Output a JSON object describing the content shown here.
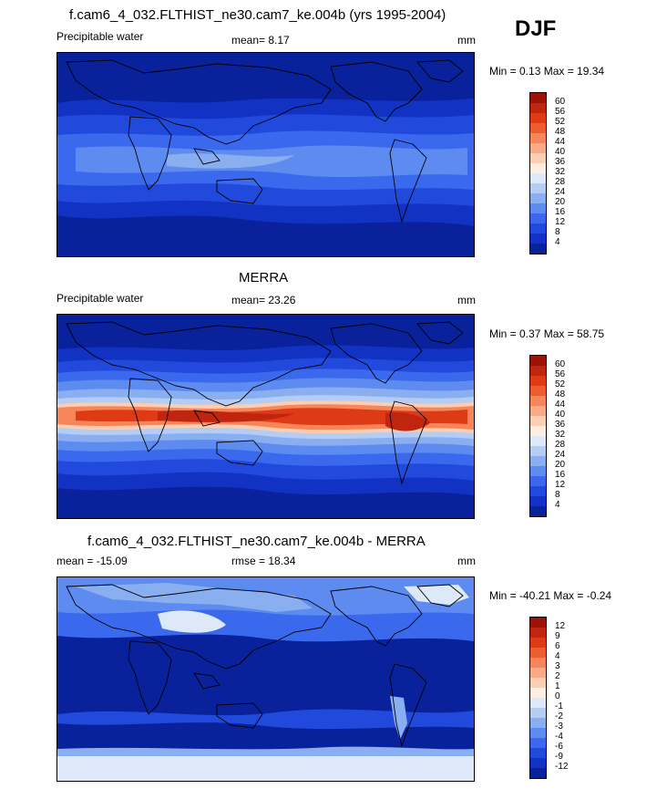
{
  "season": "DJF",
  "panels": [
    {
      "title": "f.cam6_4_032.FLTHIST_ne30.cam7_ke.004b (yrs 1995-2004)",
      "left_label": "Precipitable water",
      "center_label": "mean=  8.17",
      "right_label": "mm",
      "minmax": "Min =  0.13 Max =  19.34",
      "colorbar_labels": [
        "60",
        "56",
        "52",
        "48",
        "44",
        "40",
        "36",
        "32",
        "28",
        "24",
        "20",
        "16",
        "12",
        "8",
        "4"
      ]
    },
    {
      "title": "MERRA",
      "left_label": "Precipitable water",
      "center_label": "mean=  23.26",
      "right_label": "mm",
      "minmax": "Min =  0.37 Max =  58.75",
      "colorbar_labels": [
        "60",
        "56",
        "52",
        "48",
        "44",
        "40",
        "36",
        "32",
        "28",
        "24",
        "20",
        "16",
        "12",
        "8",
        "4"
      ]
    },
    {
      "title": "f.cam6_4_032.FLTHIST_ne30.cam7_ke.004b - MERRA",
      "left_label": "mean = -15.09",
      "center_label": "rmse =  18.34",
      "right_label": "mm",
      "minmax": "Min = -40.21 Max =  -0.24",
      "colorbar_labels": [
        "12",
        "9",
        "6",
        "4",
        "3",
        "2",
        "1",
        "0",
        "-1",
        "-2",
        "-3",
        "-4",
        "-6",
        "-9",
        "-12"
      ]
    }
  ],
  "colors": {
    "scale": [
      "#9b1208",
      "#c0260f",
      "#dd3a15",
      "#ec5d2f",
      "#f6865a",
      "#f9ab88",
      "#fbcdb3",
      "#fdeee2",
      "#dde9f8",
      "#b5cdf2",
      "#8aaff0",
      "#5d8bf0",
      "#3b69ee",
      "#2149dc",
      "#1232c4",
      "#09229b"
    ]
  }
}
